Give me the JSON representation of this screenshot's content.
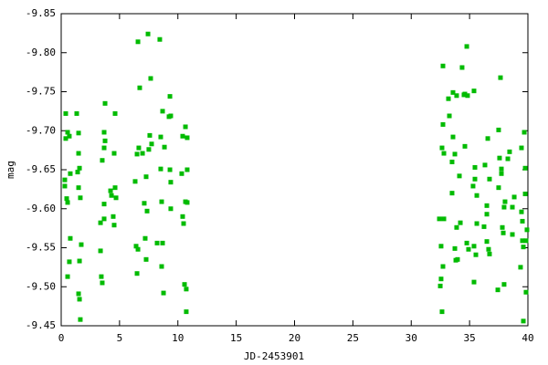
{
  "chart_data": {
    "type": "scatter",
    "xlabel": "JD-2453901",
    "ylabel": "mag",
    "color": "#00bb00",
    "x": [
      0.31,
      0.31,
      0.39,
      0.39,
      0.47,
      0.55,
      0.55,
      0.55,
      0.7,
      0.7,
      0.78,
      0.78,
      1.33,
      1.41,
      1.49,
      1.49,
      1.49,
      1.49,
      1.57,
      1.57,
      1.57,
      1.64,
      1.72,
      1.64,
      3.37,
      3.37,
      3.44,
      3.52,
      3.52,
      3.68,
      3.68,
      3.76,
      3.68,
      3.68,
      3.76,
      4.23,
      4.31,
      4.46,
      4.54,
      4.62,
      4.54,
      4.62,
      4.7,
      6.34,
      6.42,
      6.5,
      6.5,
      6.58,
      6.58,
      6.65,
      6.73,
      6.97,
      7.12,
      7.2,
      7.28,
      7.28,
      7.36,
      7.44,
      7.51,
      7.59,
      7.67,
      7.75,
      8.22,
      8.45,
      8.53,
      8.53,
      8.61,
      8.61,
      8.69,
      8.69,
      8.77,
      8.85,
      9.24,
      9.32,
      9.32,
      9.39,
      9.39,
      9.39,
      10.33,
      10.41,
      10.41,
      10.49,
      10.57,
      10.65,
      10.65,
      10.72,
      10.72,
      10.8,
      10.8,
      10.8,
      32.41,
      32.49,
      32.56,
      32.56,
      32.64,
      32.64,
      32.72,
      32.72,
      32.72,
      32.8,
      32.8,
      33.19,
      33.27,
      33.5,
      33.5,
      33.58,
      33.58,
      33.74,
      33.74,
      33.82,
      33.89,
      33.89,
      33.97,
      34.13,
      34.21,
      34.36,
      34.52,
      34.6,
      34.6,
      34.76,
      34.76,
      34.83,
      34.91,
      35.3,
      35.38,
      35.38,
      35.38,
      35.46,
      35.46,
      35.54,
      35.62,
      35.62,
      36.24,
      36.32,
      36.48,
      36.48,
      36.48,
      36.56,
      36.63,
      36.71,
      36.71,
      37.42,
      37.49,
      37.49,
      37.57,
      37.65,
      37.73,
      37.73,
      37.81,
      37.89,
      37.96,
      37.96,
      38.04,
      38.28,
      38.43,
      38.67,
      38.67,
      38.83,
      39.37,
      39.45,
      39.45,
      39.53,
      39.53,
      39.61,
      39.61,
      39.69,
      39.77,
      39.77,
      39.84,
      39.84,
      39.92
    ],
    "values": [
      -9.637,
      -9.629,
      -9.69,
      -9.722,
      -9.613,
      -9.608,
      -9.698,
      -9.513,
      -9.693,
      -9.532,
      -9.562,
      -9.645,
      -9.722,
      -9.647,
      -9.671,
      -9.697,
      -9.627,
      -9.491,
      -9.652,
      -9.533,
      -9.484,
      -9.458,
      -9.554,
      -9.614,
      -9.582,
      -9.546,
      -9.513,
      -9.505,
      -9.662,
      -9.678,
      -9.698,
      -9.735,
      -9.606,
      -9.587,
      -9.687,
      -9.623,
      -9.617,
      -9.59,
      -9.579,
      -9.722,
      -9.671,
      -9.627,
      -9.614,
      -9.635,
      -9.552,
      -9.67,
      -9.517,
      -9.814,
      -9.548,
      -9.678,
      -9.755,
      -9.671,
      -9.607,
      -9.562,
      -9.535,
      -9.641,
      -9.597,
      -9.824,
      -9.676,
      -9.694,
      -9.767,
      -9.683,
      -9.556,
      -9.817,
      -9.692,
      -9.651,
      -9.609,
      -9.526,
      -9.556,
      -9.725,
      -9.492,
      -9.679,
      -9.718,
      -9.744,
      -9.65,
      -9.6,
      -9.634,
      -9.719,
      -9.645,
      -9.693,
      -9.59,
      -9.581,
      -9.503,
      -9.609,
      -9.705,
      -9.468,
      -9.497,
      -9.608,
      -9.65,
      -9.691,
      -9.587,
      -9.501,
      -9.552,
      -9.51,
      -9.678,
      -9.468,
      -9.783,
      -9.526,
      -9.708,
      -9.587,
      -9.671,
      -9.741,
      -9.719,
      -9.66,
      -9.62,
      -9.692,
      -9.749,
      -9.67,
      -9.549,
      -9.534,
      -9.745,
      -9.576,
      -9.535,
      -9.642,
      -9.582,
      -9.781,
      -9.746,
      -9.747,
      -9.68,
      -9.808,
      -9.556,
      -9.745,
      -9.548,
      -9.629,
      -9.552,
      -9.751,
      -9.506,
      -9.638,
      -9.653,
      -9.541,
      -9.581,
      -9.617,
      -9.577,
      -9.656,
      -9.604,
      -9.558,
      -9.593,
      -9.69,
      -9.548,
      -9.638,
      -9.542,
      -9.496,
      -9.701,
      -9.627,
      -9.665,
      -9.768,
      -9.651,
      -9.645,
      -9.576,
      -9.569,
      -9.503,
      -9.602,
      -9.609,
      -9.664,
      -9.673,
      -9.567,
      -9.602,
      -9.615,
      -9.525,
      -9.596,
      -9.678,
      -9.584,
      -9.559,
      -9.551,
      -9.456,
      -9.698,
      -9.652,
      -9.619,
      -9.493,
      -9.559,
      -9.573
    ],
    "xlim": [
      0,
      40
    ],
    "xticks": [
      0,
      5,
      10,
      15,
      20,
      25,
      30,
      35,
      40
    ],
    "ylim": [
      -9.45,
      -9.85
    ],
    "yticks": [
      -9.45,
      {
        "value": -9.5,
        "label": "-9.50"
      },
      -9.55,
      {
        "value": -9.6,
        "label": "-9.60"
      },
      -9.65,
      {
        "value": -9.7,
        "label": "-9.70"
      },
      -9.75,
      {
        "value": -9.8,
        "label": "-9.80"
      },
      -9.85
    ]
  }
}
